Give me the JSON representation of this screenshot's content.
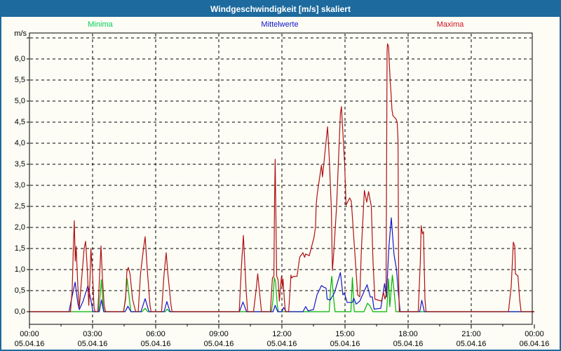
{
  "window": {
    "title": "Windgeschwindigkeit [m/s] skaliert"
  },
  "legend": [
    {
      "label": "Minima",
      "color": "#00cc55"
    },
    {
      "label": "Mittelwerte",
      "color": "#1111cc"
    },
    {
      "label": "Maxima",
      "color": "#cc1122"
    }
  ],
  "colors": {
    "titlebar": "#1d6a9e",
    "frame_border": "#1d6a9e",
    "background": "#fdfdf6",
    "grid": "#000000",
    "minima_line": "#00b400",
    "mittelwerte_line": "#1414c8",
    "maxima_line": "#b01111"
  },
  "chart_data": {
    "type": "line",
    "title": "Windgeschwindigkeit [m/s] skaliert",
    "ylabel": "m/s",
    "ylim": [
      0,
      6.5
    ],
    "ytick_step": 0.5,
    "ytick_labels": [
      "0,0",
      "0,5",
      "1,0",
      "1,5",
      "2,0",
      "2,5",
      "3,0",
      "3,5",
      "4,0",
      "4,5",
      "5,0",
      "5,5",
      "6,0"
    ],
    "x_unit": "hours",
    "xlim": [
      0,
      24
    ],
    "grid": "dashed; horizontal every 0.5 m/s up to 6.5; vertical every 3 h",
    "legend_position": "top",
    "xticks": [
      {
        "t": 0,
        "time": "00:00",
        "date": "05.04.16"
      },
      {
        "t": 3,
        "time": "03:00",
        "date": "05.04.16"
      },
      {
        "t": 6,
        "time": "06:00",
        "date": "05.04.16"
      },
      {
        "t": 9,
        "time": "09:00",
        "date": "05.04.16"
      },
      {
        "t": 12,
        "time": "12:00",
        "date": "05.04.16"
      },
      {
        "t": 15,
        "time": "15:00",
        "date": "05.04.16"
      },
      {
        "t": 18,
        "time": "18:00",
        "date": "05.04.16"
      },
      {
        "t": 21,
        "time": "21:00",
        "date": "05.04.16"
      },
      {
        "t": 24,
        "time": "00:00",
        "date": "06.04.16"
      }
    ],
    "series": [
      {
        "name": "Minima",
        "color": "#00b400",
        "points": [
          [
            0,
            0
          ],
          [
            3.28,
            0
          ],
          [
            3.37,
            0.45
          ],
          [
            3.42,
            0.76
          ],
          [
            3.5,
            0.15
          ],
          [
            3.55,
            0
          ],
          [
            4.48,
            0
          ],
          [
            4.58,
            0.4
          ],
          [
            4.64,
            0.79
          ],
          [
            4.75,
            0.3
          ],
          [
            4.82,
            0
          ],
          [
            5.35,
            0
          ],
          [
            5.5,
            0.08
          ],
          [
            5.62,
            0
          ],
          [
            6.45,
            0
          ],
          [
            6.55,
            0.06
          ],
          [
            6.65,
            0
          ],
          [
            11.5,
            0
          ],
          [
            11.58,
            0.3
          ],
          [
            11.64,
            0.81
          ],
          [
            11.7,
            0.7
          ],
          [
            11.78,
            0.15
          ],
          [
            11.83,
            0
          ],
          [
            14.25,
            0
          ],
          [
            14.32,
            0.6
          ],
          [
            14.37,
            0.84
          ],
          [
            14.47,
            0.25
          ],
          [
            14.53,
            0
          ],
          [
            15.28,
            0
          ],
          [
            15.35,
            0.81
          ],
          [
            15.44,
            0
          ],
          [
            15.9,
            0
          ],
          [
            16.07,
            0.2
          ],
          [
            16.2,
            0.13
          ],
          [
            16.32,
            0
          ],
          [
            16.98,
            0
          ],
          [
            17.07,
            0.78
          ],
          [
            17.13,
            0.12
          ],
          [
            17.25,
            0.87
          ],
          [
            17.33,
            0.5
          ],
          [
            17.42,
            0
          ],
          [
            24,
            0
          ]
        ]
      },
      {
        "name": "Mittelwerte",
        "color": "#1414c8",
        "points": [
          [
            0,
            0
          ],
          [
            1.88,
            0
          ],
          [
            2.0,
            0.3
          ],
          [
            2.17,
            0.7
          ],
          [
            2.3,
            0.2
          ],
          [
            2.37,
            0.05
          ],
          [
            2.55,
            0.25
          ],
          [
            2.78,
            0.62
          ],
          [
            2.93,
            0.25
          ],
          [
            3.02,
            0
          ],
          [
            3.32,
            0
          ],
          [
            3.42,
            0.28
          ],
          [
            3.53,
            0
          ],
          [
            4.55,
            0
          ],
          [
            4.68,
            0.13
          ],
          [
            4.82,
            0
          ],
          [
            5.3,
            0
          ],
          [
            5.5,
            0.31
          ],
          [
            5.68,
            0
          ],
          [
            6.4,
            0
          ],
          [
            6.53,
            0.24
          ],
          [
            6.68,
            0
          ],
          [
            9.98,
            0
          ],
          [
            10.15,
            0.23
          ],
          [
            10.32,
            0
          ],
          [
            11.58,
            0
          ],
          [
            11.68,
            0.15
          ],
          [
            11.8,
            0
          ],
          [
            12.0,
            0
          ],
          [
            12.08,
            0.1
          ],
          [
            12.2,
            0
          ],
          [
            13.0,
            0
          ],
          [
            13.13,
            0.12
          ],
          [
            13.25,
            0.02
          ],
          [
            13.5,
            0.05
          ],
          [
            13.67,
            0.4
          ],
          [
            13.88,
            0.62
          ],
          [
            14.0,
            0.58
          ],
          [
            14.1,
            0.56
          ],
          [
            14.15,
            0.3
          ],
          [
            14.3,
            0.28
          ],
          [
            14.5,
            0.45
          ],
          [
            14.78,
            0.93
          ],
          [
            14.9,
            0.4
          ],
          [
            14.97,
            0.44
          ],
          [
            15.1,
            0.22
          ],
          [
            15.35,
            0.22
          ],
          [
            15.42,
            0.32
          ],
          [
            15.53,
            0.18
          ],
          [
            15.7,
            0.25
          ],
          [
            16.05,
            0.64
          ],
          [
            16.2,
            0.35
          ],
          [
            16.3,
            0.35
          ],
          [
            16.38,
            0.06
          ],
          [
            16.7,
            0.08
          ],
          [
            16.88,
            0.67
          ],
          [
            16.97,
            0.35
          ],
          [
            17.08,
            1.5
          ],
          [
            17.2,
            2.23
          ],
          [
            17.33,
            1.35
          ],
          [
            17.45,
            1.0
          ],
          [
            17.53,
            0.47
          ],
          [
            17.62,
            0
          ],
          [
            18.55,
            0
          ],
          [
            18.65,
            0.27
          ],
          [
            18.77,
            0
          ],
          [
            24,
            0
          ]
        ]
      },
      {
        "name": "Maxima",
        "color": "#b01111",
        "points": [
          [
            0,
            0
          ],
          [
            1.95,
            0
          ],
          [
            2.03,
            0.5
          ],
          [
            2.08,
            1.4
          ],
          [
            2.13,
            2.16
          ],
          [
            2.18,
            1.2
          ],
          [
            2.22,
            1.55
          ],
          [
            2.3,
            0.6
          ],
          [
            2.37,
            0.1
          ],
          [
            2.45,
            0.6
          ],
          [
            2.6,
            1.5
          ],
          [
            2.67,
            1.67
          ],
          [
            2.75,
            1.0
          ],
          [
            2.82,
            0.15
          ],
          [
            2.88,
            0.8
          ],
          [
            2.92,
            1.5
          ],
          [
            3.0,
            0.9
          ],
          [
            3.07,
            0.1
          ],
          [
            3.12,
            0
          ],
          [
            3.25,
            0
          ],
          [
            3.32,
            0.7
          ],
          [
            3.4,
            1.56
          ],
          [
            3.47,
            0.8
          ],
          [
            3.55,
            0.15
          ],
          [
            3.62,
            0
          ],
          [
            4.47,
            0
          ],
          [
            4.57,
            0.3
          ],
          [
            4.63,
            0.95
          ],
          [
            4.7,
            1.05
          ],
          [
            4.78,
            0.9
          ],
          [
            4.9,
            0.3
          ],
          [
            5.05,
            0
          ],
          [
            5.17,
            0
          ],
          [
            5.28,
            0.9
          ],
          [
            5.42,
            1.5
          ],
          [
            5.5,
            1.78
          ],
          [
            5.6,
            1.0
          ],
          [
            5.73,
            0.15
          ],
          [
            5.78,
            0
          ],
          [
            6.28,
            0
          ],
          [
            6.4,
            0.9
          ],
          [
            6.5,
            1.4
          ],
          [
            6.58,
            0.9
          ],
          [
            6.73,
            0.15
          ],
          [
            6.78,
            0
          ],
          [
            9.97,
            0
          ],
          [
            10.08,
            1.1
          ],
          [
            10.17,
            1.81
          ],
          [
            10.3,
            0.5
          ],
          [
            10.37,
            0
          ],
          [
            10.65,
            0
          ],
          [
            10.77,
            0.5
          ],
          [
            10.85,
            0.9
          ],
          [
            10.97,
            0.3
          ],
          [
            11.03,
            0
          ],
          [
            11.45,
            0
          ],
          [
            11.55,
            0.8
          ],
          [
            11.62,
            0.85
          ],
          [
            11.65,
            2.6
          ],
          [
            11.68,
            3.62
          ],
          [
            11.71,
            2.5
          ],
          [
            11.75,
            0.85
          ],
          [
            11.82,
            0.75
          ],
          [
            11.88,
            0.25
          ],
          [
            11.92,
            0.5
          ],
          [
            11.98,
            0.84
          ],
          [
            12.02,
            0.6
          ],
          [
            12.05,
            0.78
          ],
          [
            12.13,
            0.2
          ],
          [
            12.17,
            0
          ],
          [
            12.32,
            0
          ],
          [
            12.4,
            0.6
          ],
          [
            12.43,
            0.87
          ],
          [
            12.47,
            0.8
          ],
          [
            12.55,
            0.84
          ],
          [
            12.72,
            0.84
          ],
          [
            12.78,
            1.06
          ],
          [
            12.85,
            1.3
          ],
          [
            13.0,
            1.4
          ],
          [
            13.08,
            1.29
          ],
          [
            13.13,
            1.37
          ],
          [
            13.3,
            1.33
          ],
          [
            13.53,
            1.77
          ],
          [
            13.6,
            2.03
          ],
          [
            13.63,
            2.54
          ],
          [
            13.68,
            2.8
          ],
          [
            13.88,
            3.48
          ],
          [
            13.93,
            3.2
          ],
          [
            14.17,
            4.39
          ],
          [
            14.25,
            3.66
          ],
          [
            14.35,
            2.45
          ],
          [
            14.4,
            0.98
          ],
          [
            14.45,
            1.3
          ],
          [
            14.6,
            2.5
          ],
          [
            14.78,
            4.7
          ],
          [
            14.83,
            4.87
          ],
          [
            14.98,
            3.53
          ],
          [
            15.05,
            2.53
          ],
          [
            15.22,
            2.7
          ],
          [
            15.3,
            2.62
          ],
          [
            15.5,
            1.15
          ],
          [
            15.6,
            0.4
          ],
          [
            15.7,
            0.35
          ],
          [
            15.78,
            1.5
          ],
          [
            15.92,
            2.88
          ],
          [
            16.03,
            2.6
          ],
          [
            16.12,
            2.85
          ],
          [
            16.25,
            2.5
          ],
          [
            16.33,
            1.2
          ],
          [
            16.42,
            0.3
          ],
          [
            16.73,
            0.25
          ],
          [
            16.83,
            0.45
          ],
          [
            16.9,
            0.3
          ],
          [
            16.95,
            0.4
          ],
          [
            17.0,
            6.2
          ],
          [
            17.02,
            6.36
          ],
          [
            17.07,
            6.3
          ],
          [
            17.1,
            5.95
          ],
          [
            17.15,
            5.46
          ],
          [
            17.2,
            5.09
          ],
          [
            17.23,
            4.8
          ],
          [
            17.28,
            4.65
          ],
          [
            17.42,
            4.58
          ],
          [
            17.48,
            4.5
          ],
          [
            17.52,
            4.07
          ],
          [
            17.55,
            0.8
          ],
          [
            17.58,
            0
          ],
          [
            18.48,
            0
          ],
          [
            18.58,
            1.2
          ],
          [
            18.62,
            2.04
          ],
          [
            18.68,
            1.85
          ],
          [
            18.73,
            1.9
          ],
          [
            18.8,
            0.3
          ],
          [
            18.85,
            0
          ],
          [
            22.77,
            0
          ],
          [
            22.9,
            0.6
          ],
          [
            23.0,
            1.65
          ],
          [
            23.07,
            1.55
          ],
          [
            23.1,
            0.9
          ],
          [
            23.22,
            0.85
          ],
          [
            23.3,
            0.3
          ],
          [
            23.37,
            0
          ],
          [
            24,
            0
          ]
        ]
      }
    ]
  }
}
